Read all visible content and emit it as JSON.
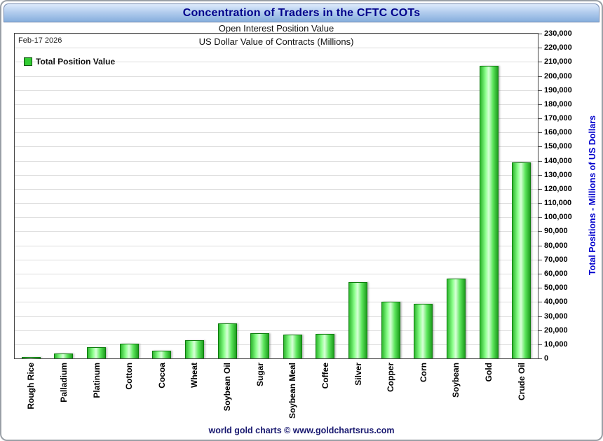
{
  "header": {
    "title": "Concentration of Traders in the CFTC COTs",
    "subtitle": "Open Interest Position Value"
  },
  "plot": {
    "date_label": "Feb-17 2026",
    "inner_title": "US Dollar Value of Contracts (Millions)"
  },
  "legend": {
    "label": "Total Position Value"
  },
  "axis": {
    "y_title": "Total Positions - Millions of US Dollars",
    "y_min": 0,
    "y_max": 230000,
    "y_step": 10000
  },
  "footer": {
    "text": "world gold charts © www.goldchartsrus.com"
  },
  "colors": {
    "bar_main": "#33cc33",
    "bar_border": "#0c7c0c",
    "title_text": "#00008b",
    "axis_title": "#0000cd",
    "footer_text": "#191970",
    "titlebar_gradient_top": "#ddeafb",
    "titlebar_gradient_bottom": "#86aedd"
  },
  "chart_data": {
    "type": "bar",
    "title": "US Dollar Value of Contracts (Millions)",
    "xlabel": "",
    "ylabel": "Total Positions - Millions of US Dollars",
    "categories": [
      "Rough Rice",
      "Palladium",
      "Platinum",
      "Cotton",
      "Cocoa",
      "Wheat",
      "Soybean Oil",
      "Sugar",
      "Soybean Meal",
      "Coffee",
      "Silver",
      "Copper",
      "Corn",
      "Soybean",
      "Gold",
      "Crude Oil"
    ],
    "values": [
      500,
      3500,
      8000,
      10500,
      5500,
      13000,
      25000,
      18000,
      17000,
      17500,
      54000,
      40000,
      38500,
      56500,
      207000,
      139000
    ],
    "series_name": "Total Position Value",
    "ylim": [
      0,
      230000
    ],
    "y_tick_step": 10000,
    "grid": true,
    "legend_position": "top-left",
    "bar_color": "green-gradient"
  }
}
